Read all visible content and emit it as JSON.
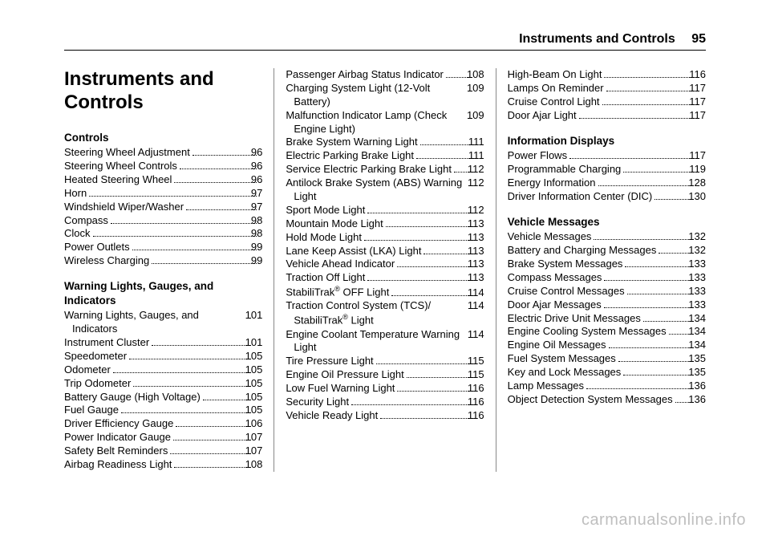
{
  "header": {
    "chapter": "Instruments and Controls",
    "page_number": "95"
  },
  "title": "Instruments and Controls",
  "watermark": "carmanualsonline.info",
  "sections": [
    {
      "title": "Controls",
      "entries": [
        {
          "label": "Steering Wheel Adjustment",
          "page": "96"
        },
        {
          "label": "Steering Wheel Controls",
          "page": "96"
        },
        {
          "label": "Heated Steering Wheel",
          "page": "96"
        },
        {
          "label": "Horn",
          "page": "97"
        },
        {
          "label": "Windshield Wiper/Washer",
          "page": "97"
        },
        {
          "label": "Compass",
          "page": "98"
        },
        {
          "label": "Clock",
          "page": "98"
        },
        {
          "label": "Power Outlets",
          "page": "99"
        },
        {
          "label": "Wireless Charging",
          "page": "99"
        }
      ]
    },
    {
      "title": "Warning Lights, Gauges, and Indicators",
      "entries": [
        {
          "label": "Warning Lights, Gauges, and Indicators",
          "page": "101"
        },
        {
          "label": "Instrument Cluster",
          "page": "101"
        },
        {
          "label": "Speedometer",
          "page": "105"
        },
        {
          "label": "Odometer",
          "page": "105"
        },
        {
          "label": "Trip Odometer",
          "page": "105"
        },
        {
          "label": "Battery Gauge (High Voltage)",
          "page": "105"
        },
        {
          "label": "Fuel Gauge",
          "page": "105"
        },
        {
          "label": "Driver Efficiency Gauge",
          "page": "106"
        },
        {
          "label": "Power Indicator Gauge",
          "page": "107"
        },
        {
          "label": "Safety Belt Reminders",
          "page": "107"
        },
        {
          "label": "Airbag Readiness Light",
          "page": "108"
        },
        {
          "label": "Passenger Airbag Status Indicator",
          "page": "108"
        },
        {
          "label": "Charging System Light (12-Volt Battery)",
          "page": "109"
        },
        {
          "label": "Malfunction Indicator Lamp (Check Engine Light)",
          "page": "109"
        },
        {
          "label": "Brake System Warning Light",
          "page": "111"
        },
        {
          "label": "Electric Parking Brake Light",
          "page": "111"
        },
        {
          "label": "Service Electric Parking Brake Light",
          "page": "112"
        },
        {
          "label": "Antilock Brake System (ABS) Warning Light",
          "page": "112"
        },
        {
          "label": "Sport Mode Light",
          "page": "112"
        },
        {
          "label": "Mountain Mode Light",
          "page": "113"
        },
        {
          "label": "Hold Mode Light",
          "page": "113"
        },
        {
          "label": "Lane Keep Assist (LKA) Light",
          "page": "113"
        },
        {
          "label": "Vehicle Ahead Indicator",
          "page": "113"
        },
        {
          "label": "Traction Off Light",
          "page": "113"
        },
        {
          "label_html": "StabiliTrak<sup>®</sup> OFF Light",
          "page": "114"
        },
        {
          "label_html": "Traction Control System (TCS)/ StabiliTrak<sup>®</sup> Light",
          "page": "114"
        },
        {
          "label": "Engine Coolant Temperature Warning Light",
          "page": "114"
        },
        {
          "label": "Tire Pressure Light",
          "page": "115"
        },
        {
          "label": "Engine Oil Pressure Light",
          "page": "115"
        },
        {
          "label": "Low Fuel Warning Light",
          "page": "116"
        },
        {
          "label": "Security Light",
          "page": "116"
        },
        {
          "label": "Vehicle Ready Light",
          "page": "116"
        },
        {
          "label": "High-Beam On Light",
          "page": "116"
        },
        {
          "label": "Lamps On Reminder",
          "page": "117"
        },
        {
          "label": "Cruise Control Light",
          "page": "117"
        },
        {
          "label": "Door Ajar Light",
          "page": "117"
        }
      ]
    },
    {
      "title": "Information Displays",
      "entries": [
        {
          "label": "Power Flows",
          "page": "117"
        },
        {
          "label": "Programmable Charging",
          "page": "119"
        },
        {
          "label": "Energy Information",
          "page": "128"
        },
        {
          "label": "Driver Information Center (DIC)",
          "page": "130"
        }
      ]
    },
    {
      "title": "Vehicle Messages",
      "entries": [
        {
          "label": "Vehicle Messages",
          "page": "132"
        },
        {
          "label": "Battery and Charging Messages",
          "page": "132"
        },
        {
          "label": "Brake System Messages",
          "page": "133"
        },
        {
          "label": "Compass Messages",
          "page": "133"
        },
        {
          "label": "Cruise Control Messages",
          "page": "133"
        },
        {
          "label": "Door Ajar Messages",
          "page": "133"
        },
        {
          "label": "Electric Drive Unit Messages",
          "page": "134"
        },
        {
          "label": "Engine Cooling System Messages",
          "page": "134"
        },
        {
          "label": "Engine Oil Messages",
          "page": "134"
        },
        {
          "label": "Fuel System Messages",
          "page": "135"
        },
        {
          "label": "Key and Lock Messages",
          "page": "135"
        },
        {
          "label": "Lamp Messages",
          "page": "136"
        },
        {
          "label": "Object Detection System Messages",
          "page": "136"
        }
      ]
    }
  ],
  "layout": {
    "col1": {
      "title": true,
      "section_start": 0,
      "entry_start": 0,
      "section_end": 1,
      "entry_end": 11
    },
    "col2": {
      "section_start": 1,
      "entry_start": 11,
      "section_end": 1,
      "entry_end": 36
    },
    "col3": {
      "section_start": 2,
      "entry_start": 0,
      "section_end": 3,
      "entry_end": 13,
      "prepend_from": {
        "section": 1,
        "start": 32,
        "count": 4
      }
    }
  }
}
